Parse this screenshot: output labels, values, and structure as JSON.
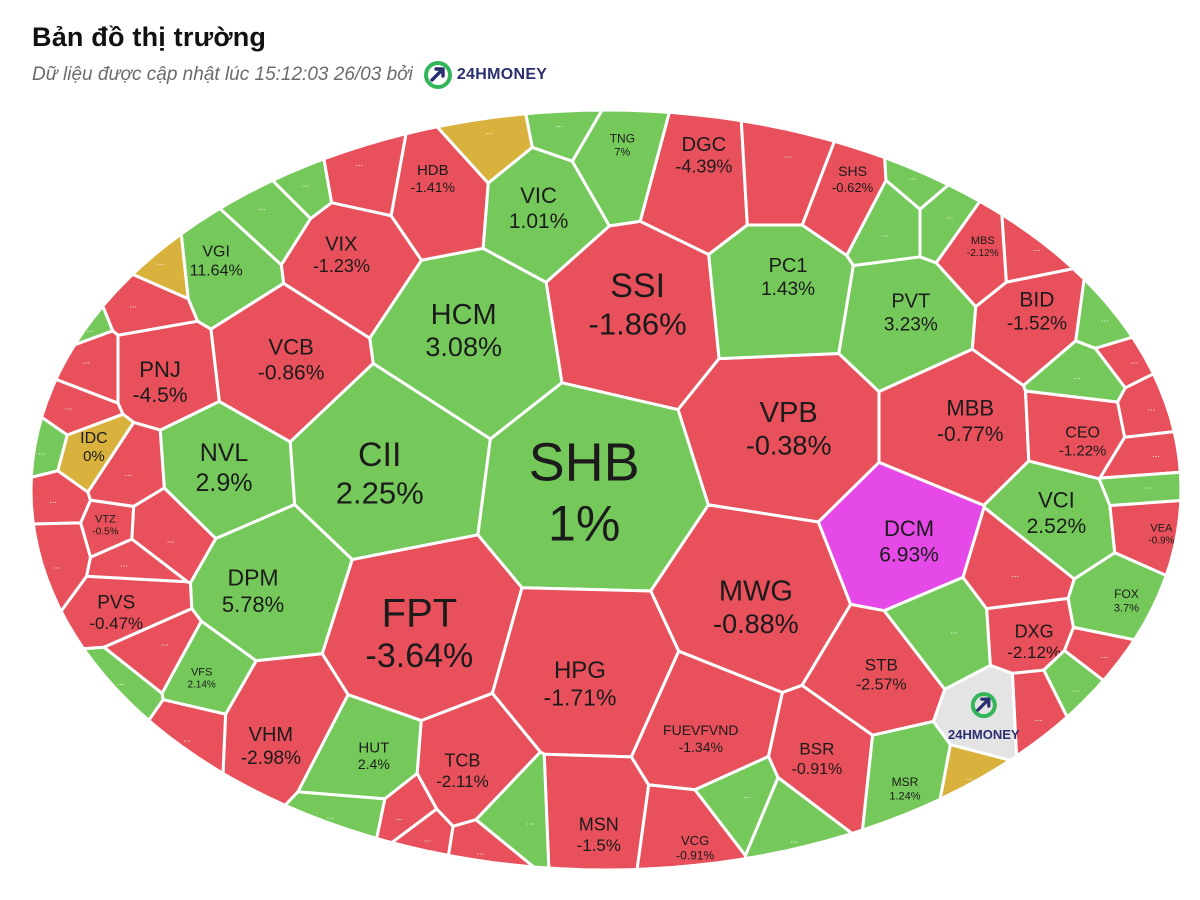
{
  "header": {
    "title": "Bản đồ thị trường",
    "subtitle": "Dữ liệu được cập nhật lúc 15:12:03 26/03 bởi",
    "brand": "24HMONEY"
  },
  "colors": {
    "up": "#74c95a",
    "down": "#e8505b",
    "ceiling": "#e54ae8",
    "reference": "#d8b23c",
    "logo_cell": "#e4e4e4",
    "border": "#ffffff",
    "brand_green": "#33b55a",
    "brand_navy": "#2a2f6e"
  },
  "chart_data": {
    "type": "treemap",
    "title": "Bản đồ thị trường",
    "cells": [
      {
        "ticker": "SHB",
        "change": "1%",
        "value": 1,
        "status": "up"
      },
      {
        "ticker": "FPT",
        "change": "-3.64%",
        "value": -3.64,
        "status": "down"
      },
      {
        "ticker": "SSI",
        "change": "-1.86%",
        "value": -1.86,
        "status": "down"
      },
      {
        "ticker": "CII",
        "change": "2.25%",
        "value": 2.25,
        "status": "up"
      },
      {
        "ticker": "VPB",
        "change": "-0.38%",
        "value": -0.38,
        "status": "down"
      },
      {
        "ticker": "MWG",
        "change": "-0.88%",
        "value": -0.88,
        "status": "down"
      },
      {
        "ticker": "HCM",
        "change": "3.08%",
        "value": 3.08,
        "status": "up"
      },
      {
        "ticker": "HPG",
        "change": "-1.71%",
        "value": -1.71,
        "status": "down"
      },
      {
        "ticker": "NVL",
        "change": "2.9%",
        "value": 2.9,
        "status": "up"
      },
      {
        "ticker": "DPM",
        "change": "5.78%",
        "value": 5.78,
        "status": "up"
      },
      {
        "ticker": "VCB",
        "change": "-0.86%",
        "value": -0.86,
        "status": "down"
      },
      {
        "ticker": "PNJ",
        "change": "-4.5%",
        "value": -4.5,
        "status": "down"
      },
      {
        "ticker": "VIX",
        "change": "-1.23%",
        "value": -1.23,
        "status": "down"
      },
      {
        "ticker": "VIC",
        "change": "1.01%",
        "value": 1.01,
        "status": "up"
      },
      {
        "ticker": "DGC",
        "change": "-4.39%",
        "value": -4.39,
        "status": "down"
      },
      {
        "ticker": "PC1",
        "change": "1.43%",
        "value": 1.43,
        "status": "up"
      },
      {
        "ticker": "PVT",
        "change": "3.23%",
        "value": 3.23,
        "status": "up"
      },
      {
        "ticker": "MBB",
        "change": "-0.77%",
        "value": -0.77,
        "status": "down"
      },
      {
        "ticker": "BID",
        "change": "-1.52%",
        "value": -1.52,
        "status": "down"
      },
      {
        "ticker": "DCM",
        "change": "6.93%",
        "value": 6.93,
        "status": "ceiling"
      },
      {
        "ticker": "VCI",
        "change": "2.52%",
        "value": 2.52,
        "status": "up"
      },
      {
        "ticker": "VHM",
        "change": "-2.98%",
        "value": -2.98,
        "status": "down"
      },
      {
        "ticker": "TCB",
        "change": "-2.11%",
        "value": -2.11,
        "status": "down"
      },
      {
        "ticker": "MSN",
        "change": "-1.5%",
        "value": -1.5,
        "status": "down"
      },
      {
        "ticker": "FUEVFVND",
        "change": "-1.34%",
        "value": -1.34,
        "status": "down"
      },
      {
        "ticker": "BSR",
        "change": "-0.91%",
        "value": -0.91,
        "status": "down"
      },
      {
        "ticker": "STB",
        "change": "-2.57%",
        "value": -2.57,
        "status": "down"
      },
      {
        "ticker": "DXG",
        "change": "-2.12%",
        "value": -2.12,
        "status": "down"
      },
      {
        "ticker": "CEO",
        "change": "-1.22%",
        "value": -1.22,
        "status": "down"
      },
      {
        "ticker": "PVS",
        "change": "-0.47%",
        "value": -0.47,
        "status": "down"
      },
      {
        "ticker": "VGI",
        "change": "11.64%",
        "value": 11.64,
        "status": "up"
      },
      {
        "ticker": "HDB",
        "change": "-1.41%",
        "value": -1.41,
        "status": "down"
      },
      {
        "ticker": "SHS",
        "change": "-0.62%",
        "value": -0.62,
        "status": "down"
      },
      {
        "ticker": "HUT",
        "change": "2.4%",
        "value": 2.4,
        "status": "up"
      },
      {
        "ticker": "VCG",
        "change": "-0.91%",
        "value": -0.91,
        "status": "down"
      },
      {
        "ticker": "IDC",
        "change": "0%",
        "value": 0,
        "status": "reference"
      },
      {
        "ticker": "TNG",
        "change": "7%",
        "value": 7,
        "status": "up"
      },
      {
        "ticker": "MBS",
        "change": "-2.12%",
        "value": -2.12,
        "status": "down"
      },
      {
        "ticker": "VTZ",
        "change": "-0.5%",
        "value": -0.5,
        "status": "down"
      },
      {
        "ticker": "VFS",
        "change": "2.14%",
        "value": 2.14,
        "status": "up"
      },
      {
        "ticker": "VEA",
        "change": "-0.9%",
        "value": -0.9,
        "status": "down"
      },
      {
        "ticker": "FOX",
        "change": "3.7%",
        "value": 3.7,
        "status": "up"
      },
      {
        "ticker": "MSR",
        "change": "1.24%",
        "value": 1.24,
        "status": "up"
      }
    ],
    "small_cells": [
      {
        "label": "...",
        "status": "reference"
      },
      {
        "label": "...",
        "status": "up"
      },
      {
        "label": "...",
        "status": "down"
      },
      {
        "label": "...",
        "status": "down"
      },
      {
        "label": "...",
        "status": "up"
      },
      {
        "label": "...",
        "status": "up"
      },
      {
        "label": "...",
        "status": "reference"
      },
      {
        "label": "...",
        "status": "down"
      },
      {
        "label": "...",
        "status": "up"
      },
      {
        "label": "...",
        "status": "down"
      },
      {
        "label": "...",
        "status": "down"
      },
      {
        "label": "...",
        "status": "up"
      },
      {
        "label": "...",
        "status": "down"
      },
      {
        "label": "...",
        "status": "down"
      },
      {
        "label": "...",
        "status": "down"
      },
      {
        "label": "...",
        "status": "down"
      },
      {
        "label": "...",
        "status": "down"
      },
      {
        "label": "...",
        "status": "down"
      },
      {
        "label": "...",
        "status": "up"
      },
      {
        "label": "...",
        "status": "down"
      },
      {
        "label": "...",
        "status": "up"
      },
      {
        "label": "...",
        "status": "down"
      },
      {
        "label": "...",
        "status": "down"
      },
      {
        "label": "...",
        "status": "down"
      },
      {
        "label": "...",
        "status": "up"
      },
      {
        "label": "...",
        "status": "up"
      },
      {
        "label": "...",
        "status": "up"
      },
      {
        "label": "...",
        "status": "reference"
      },
      {
        "label": "...",
        "status": "down"
      },
      {
        "label": "...",
        "status": "up"
      },
      {
        "label": "...",
        "status": "down"
      },
      {
        "label": "...",
        "status": "up"
      },
      {
        "label": "...",
        "status": "down"
      },
      {
        "label": "...",
        "status": "down"
      },
      {
        "label": "...",
        "status": "up"
      },
      {
        "label": "...",
        "status": "down"
      },
      {
        "label": "...",
        "status": "up"
      },
      {
        "label": "...",
        "status": "down"
      },
      {
        "label": "...",
        "status": "up"
      },
      {
        "label": "...",
        "status": "up"
      },
      {
        "label": "...",
        "status": "up"
      },
      {
        "label": "...",
        "status": "up"
      },
      {
        "label": "...",
        "status": "down"
      }
    ],
    "watermark": "24HMONEY"
  }
}
